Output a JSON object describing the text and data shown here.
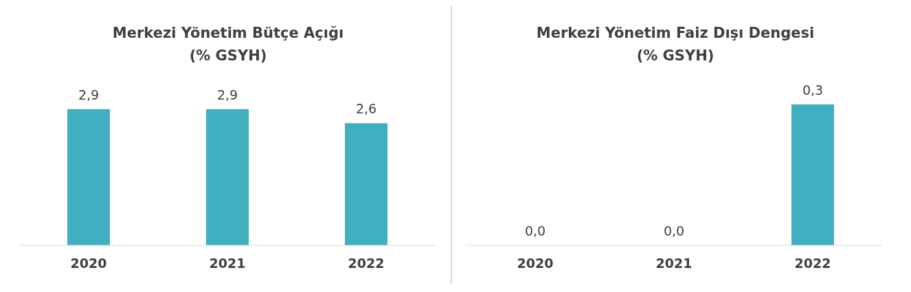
{
  "chart_data": [
    {
      "type": "bar",
      "title": "Merkezi Yönetim Bütçe Açığı\n(% GSYH)",
      "categories": [
        "2020",
        "2021",
        "2022"
      ],
      "values": [
        2.9,
        2.9,
        2.6
      ],
      "value_labels": [
        "2,9",
        "2,9",
        "2,6"
      ],
      "color": "#40afbf"
    },
    {
      "type": "bar",
      "title": "Merkezi Yönetim Faiz Dışı Dengesi\n(% GSYH)",
      "categories": [
        "2020",
        "2021",
        "2022"
      ],
      "values": [
        0.0,
        0.0,
        0.3
      ],
      "value_labels": [
        "0,0",
        "0,0",
        "0,3"
      ],
      "color": "#40afbf"
    }
  ]
}
